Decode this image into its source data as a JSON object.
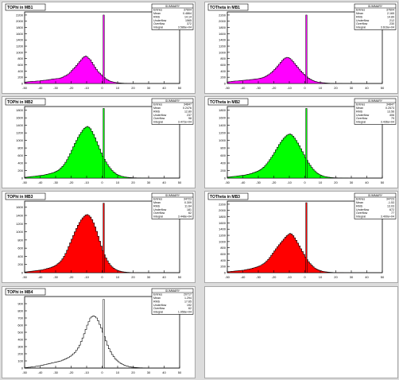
{
  "chart_data": [
    {
      "type": "bar",
      "title": "TOPhi in MB1",
      "fill_color": "#ff00ff",
      "x_ticks": [
        "-50",
        "-40",
        "-30",
        "-20",
        "-10",
        "0",
        "10",
        "20",
        "30",
        "40",
        "50"
      ],
      "y_ticks": [
        "0",
        "200",
        "400",
        "600",
        "800",
        "1000",
        "1200",
        "1400",
        "1600",
        "1800",
        "2000",
        "2200"
      ],
      "xlim": [
        -50,
        50
      ],
      "ylim": [
        0,
        2300
      ],
      "stats": {
        "header": "SUMMARY",
        "rows": [
          {
            "label": "Entries",
            "value": "37604"
          },
          {
            "label": "Mean",
            "value": "0.4864"
          },
          {
            "label": "RMS",
            "value": "14.14"
          },
          {
            "label": "Underflow",
            "value": "1565"
          },
          {
            "label": "Overflow",
            "value": "372"
          },
          {
            "label": "Integral",
            "value": "3.586e+04"
          }
        ]
      },
      "peak": {
        "x": 1,
        "value": 2200
      },
      "values": [
        40,
        50,
        55,
        60,
        65,
        70,
        70,
        75,
        80,
        80,
        90,
        95,
        100,
        105,
        110,
        120,
        125,
        135,
        145,
        150,
        155,
        160,
        165,
        180,
        200,
        230,
        250,
        280,
        310,
        360,
        420,
        470,
        520,
        580,
        640,
        700,
        760,
        820,
        860,
        880,
        850,
        800,
        760,
        680,
        600,
        520,
        450,
        380,
        330,
        280,
        230,
        190,
        150,
        120,
        90,
        70,
        55,
        45,
        35,
        25,
        20,
        15,
        10,
        8,
        5,
        4,
        3,
        2,
        2,
        1,
        1,
        1,
        0,
        0,
        0,
        0,
        0,
        0,
        0,
        0,
        0,
        0,
        0,
        0,
        0,
        0,
        0,
        0,
        0,
        0,
        0,
        0,
        0,
        0,
        0,
        0,
        0,
        0,
        0,
        0
      ]
    },
    {
      "type": "bar",
      "title": "TOTheta in MB1",
      "fill_color": "#ff00ff",
      "x_ticks": [
        "-50",
        "-40",
        "-30",
        "-20",
        "-10",
        "0",
        "10",
        "20",
        "30",
        "40",
        "50"
      ],
      "y_ticks": [
        "0",
        "200",
        "400",
        "600",
        "800",
        "1000",
        "1200",
        "1400",
        "1600",
        "1800",
        "2000",
        "2200"
      ],
      "xlim": [
        -50,
        50
      ],
      "ylim": [
        0,
        2300
      ],
      "stats": {
        "header": "SUMMARY",
        "rows": [
          {
            "label": "Entries",
            "value": "37604"
          },
          {
            "label": "Mean",
            "value": "2.165"
          },
          {
            "label": "RMS",
            "value": "14.89"
          },
          {
            "label": "Underflow",
            "value": "212"
          },
          {
            "label": "Overflow",
            "value": "230"
          },
          {
            "label": "Integral",
            "value": "3.616e+04"
          }
        ]
      },
      "peak": {
        "x": 1,
        "value": 2200
      },
      "values": [
        50,
        55,
        60,
        70,
        75,
        80,
        80,
        85,
        90,
        95,
        100,
        105,
        110,
        115,
        120,
        125,
        130,
        140,
        145,
        150,
        160,
        170,
        180,
        200,
        220,
        250,
        280,
        310,
        350,
        400,
        450,
        500,
        560,
        620,
        680,
        740,
        790,
        820,
        840,
        830,
        800,
        760,
        700,
        640,
        580,
        520,
        460,
        400,
        350,
        300,
        250,
        210,
        170,
        140,
        110,
        90,
        70,
        55,
        45,
        35,
        30,
        25,
        20,
        15,
        10,
        8,
        6,
        5,
        4,
        3,
        2,
        2,
        1,
        1,
        0,
        0,
        0,
        0,
        0,
        0,
        0,
        0,
        0,
        0,
        0,
        0,
        0,
        0,
        0,
        0,
        0,
        0,
        0,
        0,
        0,
        0,
        0,
        0,
        0,
        0
      ]
    },
    {
      "type": "bar",
      "title": "TOPhi in MB2",
      "fill_color": "#00ff00",
      "x_ticks": [
        "-50",
        "-40",
        "-30",
        "-20",
        "-10",
        "0",
        "10",
        "20",
        "30",
        "40",
        "50"
      ],
      "y_ticks": [
        "0",
        "200",
        "400",
        "600",
        "800",
        "1000",
        "1200",
        "1400",
        "1600",
        "1800"
      ],
      "xlim": [
        -50,
        50
      ],
      "ylim": [
        0,
        1900
      ],
      "stats": {
        "header": "SUMMARY",
        "rows": [
          {
            "label": "Entries",
            "value": "34847"
          },
          {
            "label": "Mean",
            "value": "0.2476"
          },
          {
            "label": "RMS",
            "value": "12.89"
          },
          {
            "label": "Underflow",
            "value": "237"
          },
          {
            "label": "Overflow",
            "value": "98"
          },
          {
            "label": "Integral",
            "value": "3.472e+04"
          }
        ]
      },
      "peak": {
        "x": 1,
        "value": 1850
      },
      "values": [
        20,
        25,
        30,
        35,
        40,
        45,
        50,
        55,
        60,
        65,
        70,
        75,
        80,
        90,
        100,
        110,
        120,
        130,
        145,
        160,
        180,
        200,
        230,
        270,
        310,
        360,
        420,
        490,
        570,
        650,
        740,
        830,
        920,
        1000,
        1080,
        1150,
        1210,
        1270,
        1320,
        1350,
        1370,
        1350,
        1310,
        1240,
        1160,
        1070,
        970,
        870,
        770,
        670,
        580,
        500,
        430,
        360,
        300,
        250,
        200,
        160,
        130,
        100,
        80,
        65,
        50,
        40,
        30,
        25,
        20,
        15,
        12,
        10,
        8,
        6,
        5,
        4,
        3,
        2,
        2,
        1,
        1,
        0,
        0,
        0,
        0,
        0,
        0,
        0,
        0,
        0,
        0,
        0,
        0,
        0,
        0,
        0,
        0,
        0,
        0,
        0,
        0,
        0
      ]
    },
    {
      "type": "bar",
      "title": "TOTheta in MB2",
      "fill_color": "#00ff00",
      "x_ticks": [
        "-50",
        "-40",
        "-30",
        "-20",
        "-10",
        "0",
        "10",
        "20",
        "30",
        "40",
        "50"
      ],
      "y_ticks": [
        "0",
        "200",
        "400",
        "600",
        "800",
        "1000",
        "1200",
        "1400",
        "1600",
        "1800"
      ],
      "xlim": [
        -50,
        50
      ],
      "ylim": [
        0,
        1900
      ],
      "stats": {
        "header": "SUMMARY",
        "rows": [
          {
            "label": "Entries",
            "value": "34847"
          },
          {
            "label": "Mean",
            "value": "0.2573"
          },
          {
            "label": "RMS",
            "value": "13.56"
          },
          {
            "label": "Underflow",
            "value": "406"
          },
          {
            "label": "Overflow",
            "value": "79"
          },
          {
            "label": "Integral",
            "value": "3.436e+04"
          }
        ]
      },
      "peak": {
        "x": 1,
        "value": 1850
      },
      "values": [
        25,
        30,
        35,
        40,
        45,
        50,
        55,
        60,
        65,
        70,
        75,
        80,
        90,
        100,
        110,
        120,
        135,
        150,
        165,
        180,
        200,
        225,
        255,
        290,
        330,
        380,
        430,
        490,
        550,
        610,
        680,
        750,
        820,
        890,
        950,
        1010,
        1060,
        1100,
        1140,
        1160,
        1170,
        1150,
        1110,
        1060,
        1000,
        930,
        860,
        780,
        700,
        620,
        540,
        470,
        400,
        340,
        280,
        230,
        190,
        150,
        120,
        95,
        75,
        60,
        45,
        35,
        28,
        22,
        17,
        13,
        10,
        8,
        6,
        5,
        4,
        3,
        2,
        2,
        1,
        1,
        0,
        0,
        0,
        0,
        0,
        0,
        0,
        0,
        0,
        0,
        0,
        0,
        0,
        0,
        0,
        0,
        0,
        0,
        0,
        0,
        0,
        0
      ]
    },
    {
      "type": "bar",
      "title": "TOPhi in MB3",
      "fill_color": "#ff0000",
      "x_ticks": [
        "-50",
        "-40",
        "-30",
        "-20",
        "-10",
        "0",
        "10",
        "20",
        "30",
        "40",
        "50"
      ],
      "y_ticks": [
        "0",
        "200",
        "400",
        "600",
        "800",
        "1000",
        "1200",
        "1400",
        "1600"
      ],
      "xlim": [
        -50,
        50
      ],
      "ylim": [
        0,
        1750
      ],
      "stats": {
        "header": "SUMMARY",
        "rows": [
          {
            "label": "Entries",
            "value": "34723"
          },
          {
            "label": "Mean",
            "value": "0.309"
          },
          {
            "label": "RMS",
            "value": "11.64"
          },
          {
            "label": "Underflow",
            "value": "181"
          },
          {
            "label": "Overflow",
            "value": "62"
          },
          {
            "label": "Integral",
            "value": "3.448e+04"
          }
        ]
      },
      "peak": {
        "x": 1,
        "value": 1700
      },
      "values": [
        15,
        20,
        25,
        30,
        35,
        40,
        45,
        50,
        55,
        60,
        65,
        70,
        80,
        90,
        100,
        110,
        120,
        135,
        150,
        170,
        190,
        220,
        250,
        290,
        340,
        400,
        470,
        550,
        640,
        730,
        820,
        910,
        1000,
        1080,
        1160,
        1230,
        1290,
        1340,
        1380,
        1410,
        1420,
        1400,
        1360,
        1300,
        1220,
        1120,
        1010,
        890,
        770,
        650,
        540,
        440,
        360,
        290,
        230,
        180,
        140,
        110,
        85,
        65,
        50,
        38,
        28,
        20,
        15,
        11,
        8,
        6,
        4,
        3,
        2,
        2,
        1,
        1,
        0,
        0,
        0,
        0,
        0,
        0,
        0,
        0,
        0,
        0,
        0,
        0,
        0,
        0,
        0,
        0,
        0,
        0,
        0,
        0,
        0,
        0,
        0,
        0,
        0,
        0
      ]
    },
    {
      "type": "bar",
      "title": "TOTheta in MB3",
      "fill_color": "#ff0000",
      "x_ticks": [
        "-50",
        "-40",
        "-30",
        "-20",
        "-10",
        "0",
        "10",
        "20",
        "30",
        "40",
        "50"
      ],
      "y_ticks": [
        "0",
        "200",
        "400",
        "600",
        "800",
        "1000",
        "1200",
        "1400",
        "1600",
        "1800",
        "2000",
        "2200"
      ],
      "xlim": [
        -50,
        50
      ],
      "ylim": [
        0,
        2300
      ],
      "stats": {
        "header": "SUMMARY",
        "rows": [
          {
            "label": "Entries",
            "value": "34723"
          },
          {
            "label": "Mean",
            "value": "-1.53"
          },
          {
            "label": "RMS",
            "value": "13.03"
          },
          {
            "label": "Underflow",
            "value": "672"
          },
          {
            "label": "Overflow",
            "value": "77"
          },
          {
            "label": "Integral",
            "value": "3.400e+04"
          }
        ]
      },
      "peak": {
        "x": 1,
        "value": 2250
      },
      "values": [
        30,
        35,
        40,
        45,
        50,
        55,
        60,
        65,
        70,
        75,
        80,
        90,
        100,
        110,
        120,
        130,
        145,
        160,
        175,
        190,
        210,
        230,
        260,
        290,
        330,
        380,
        430,
        490,
        560,
        630,
        700,
        770,
        840,
        900,
        960,
        1020,
        1080,
        1140,
        1190,
        1230,
        1260,
        1240,
        1190,
        1120,
        1040,
        950,
        860,
        770,
        680,
        590,
        500,
        420,
        350,
        290,
        240,
        190,
        150,
        120,
        95,
        75,
        58,
        45,
        35,
        27,
        20,
        15,
        11,
        8,
        6,
        4,
        3,
        2,
        2,
        1,
        1,
        0,
        0,
        0,
        0,
        0,
        0,
        0,
        0,
        0,
        0,
        0,
        0,
        0,
        0,
        0,
        0,
        0,
        0,
        0,
        0,
        0,
        0,
        0,
        0,
        0
      ]
    },
    {
      "type": "bar",
      "title": "TOPhi in MB4",
      "fill_color": "none",
      "x_ticks": [
        "-50",
        "-40",
        "-30",
        "-20",
        "-10",
        "0",
        "10",
        "20",
        "30",
        "40",
        "50"
      ],
      "y_ticks": [
        "0",
        "100",
        "200",
        "300",
        "400",
        "500",
        "600",
        "700",
        "800",
        "900"
      ],
      "xlim": [
        -50,
        50
      ],
      "ylim": [
        0,
        1000
      ],
      "stats": {
        "header": "SUMMARY",
        "rows": [
          {
            "label": "Entries",
            "value": "20717"
          },
          {
            "label": "Mean",
            "value": "1.294"
          },
          {
            "label": "RMS",
            "value": "17.65"
          },
          {
            "label": "Underflow",
            "value": "192"
          },
          {
            "label": "Overflow",
            "value": "62"
          },
          {
            "label": "Integral",
            "value": "1.956e+04"
          }
        ]
      },
      "peak": {
        "x": 1,
        "value": 960
      },
      "values": [
        5,
        8,
        10,
        12,
        15,
        18,
        20,
        25,
        28,
        32,
        36,
        40,
        45,
        50,
        55,
        60,
        65,
        70,
        75,
        80,
        85,
        90,
        95,
        100,
        110,
        120,
        130,
        140,
        150,
        165,
        180,
        200,
        220,
        250,
        280,
        320,
        370,
        420,
        480,
        540,
        600,
        650,
        700,
        720,
        730,
        720,
        700,
        660,
        610,
        560,
        500,
        440,
        380,
        320,
        270,
        230,
        190,
        160,
        130,
        110,
        90,
        75,
        60,
        50,
        40,
        32,
        26,
        20,
        16,
        12,
        10,
        8,
        6,
        5,
        4,
        3,
        2,
        2,
        1,
        1,
        0,
        0,
        0,
        0,
        0,
        0,
        0,
        0,
        0,
        0,
        0,
        0,
        0,
        0,
        0,
        0,
        0,
        0,
        0,
        0
      ]
    }
  ]
}
